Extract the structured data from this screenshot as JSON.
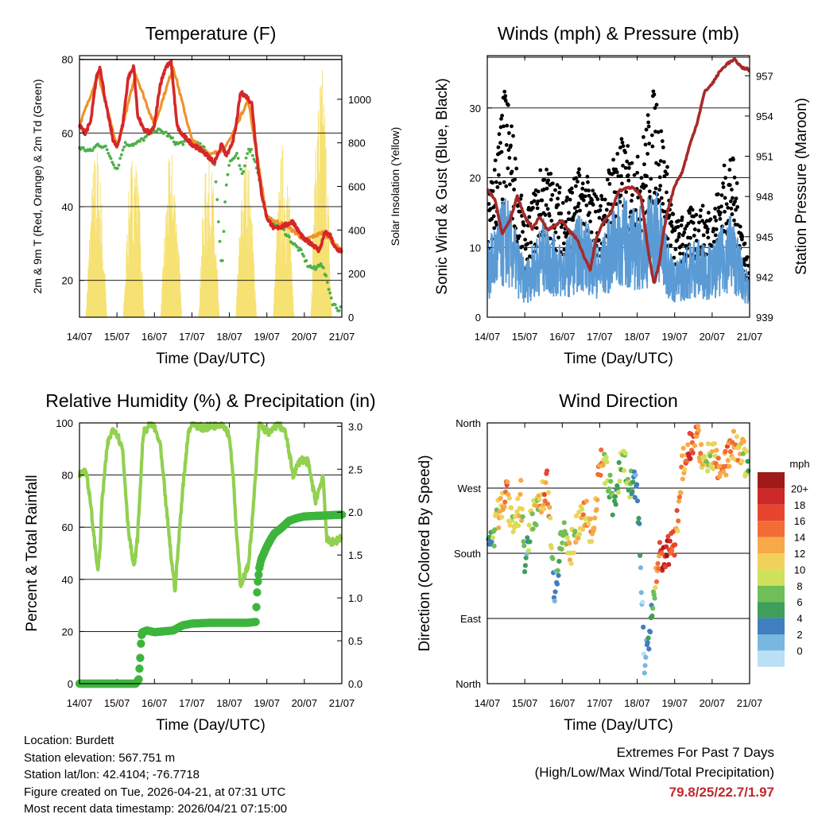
{
  "days": [
    "14/07",
    "15/07",
    "16/07",
    "17/07",
    "18/07",
    "19/07",
    "20/07",
    "21/07"
  ],
  "chart_data": [
    {
      "type": "line",
      "title": "Temperature (F)",
      "xlabel": "Time (Day/UTC)",
      "ylabel_left": "2m & 9m T (Red, Orange) & 2m Td (Green)",
      "ylabel_right": "Solar Insolation (Yellow)",
      "ylim": [
        10,
        81
      ],
      "y2lim": [
        0,
        1200
      ],
      "yticks": [
        "20",
        "40",
        "60",
        "80"
      ],
      "y2ticks": [
        "0",
        "200",
        "400",
        "600",
        "800",
        "1000"
      ],
      "series": [
        {
          "name": "2m T",
          "color": "#d62728",
          "x": [
            0,
            0.15,
            0.3,
            0.45,
            0.55,
            0.7,
            0.9,
            1.0,
            1.15,
            1.3,
            1.45,
            1.55,
            1.7,
            1.9,
            2.0,
            2.15,
            2.3,
            2.45,
            2.6,
            2.7,
            2.9,
            3.0,
            3.3,
            3.6,
            3.8,
            3.9,
            4.0,
            4.15,
            4.3,
            4.45,
            4.6,
            4.75,
            4.85,
            5.0,
            5.2,
            5.5,
            5.7,
            5.8,
            6.0,
            6.2,
            6.4,
            6.55,
            6.7,
            6.8,
            6.95,
            7.0
          ],
          "values": [
            62,
            60,
            63,
            75,
            78,
            68,
            58,
            56,
            62,
            75,
            78,
            65,
            61,
            60,
            62,
            73,
            78,
            79,
            62,
            60,
            58,
            57,
            55,
            52,
            57,
            54,
            55,
            60,
            71,
            70,
            68,
            52,
            44,
            37,
            34,
            35,
            36,
            34,
            31,
            30,
            28,
            33,
            32,
            29,
            28,
            28
          ]
        },
        {
          "name": "9m T",
          "color": "#f0922b",
          "x": [
            0,
            0.5,
            1.0,
            1.5,
            2.0,
            2.5,
            3.0,
            3.5,
            3.9,
            4.0,
            4.5,
            5.0,
            5.5,
            6.0,
            6.5,
            7.0
          ],
          "values": [
            62,
            76,
            56,
            76,
            62,
            78,
            58,
            54,
            56,
            58,
            69,
            37,
            35,
            31,
            33,
            28
          ]
        },
        {
          "name": "2m Td",
          "color": "#4daf4a",
          "x": [
            0,
            0.3,
            0.5,
            0.7,
            1.0,
            1.2,
            1.5,
            1.8,
            2.0,
            2.3,
            2.6,
            3.0,
            3.3,
            3.6,
            3.7,
            3.8,
            3.9,
            4.0,
            4.2,
            4.35,
            4.5,
            4.6,
            4.75,
            4.85,
            5.0,
            5.3,
            5.5,
            5.7,
            5.9,
            6.1,
            6.3,
            6.45,
            6.6,
            6.75,
            6.9,
            7.0
          ],
          "values": [
            56,
            55,
            57,
            56,
            50,
            57,
            57,
            59,
            61,
            60,
            57,
            58,
            56,
            52,
            38,
            22,
            45,
            52,
            54,
            48,
            56,
            55,
            50,
            45,
            37,
            35,
            33,
            30,
            28,
            24,
            23,
            25,
            20,
            14,
            12,
            13
          ]
        },
        {
          "name": "Solar Insolation",
          "color": "#f5dc5a",
          "axis": "right",
          "peaks_x": [
            0.45,
            1.45,
            2.45,
            3.45,
            4.45,
            5.45,
            6.45
          ],
          "peaks": [
            800,
            800,
            780,
            780,
            760,
            820,
            1180
          ]
        }
      ]
    },
    {
      "type": "scatter",
      "title": "Winds (mph) & Pressure (mb)",
      "xlabel": "Time (Day/UTC)",
      "ylabel_left": "Sonic Wind & Gust (Blue, Black)",
      "ylabel_right": "Station Pressure (Maroon)",
      "ylim": [
        0,
        37.5
      ],
      "y2lim": [
        939,
        958.5
      ],
      "yticks": [
        "0",
        "10",
        "20",
        "30"
      ],
      "y2ticks": [
        "939",
        "942",
        "945",
        "948",
        "951",
        "954",
        "957"
      ],
      "series": [
        {
          "name": "Gust",
          "color": "#000000",
          "x": [
            0,
            0.5,
            1.0,
            1.5,
            2.0,
            2.5,
            3.0,
            3.5,
            4.0,
            4.5,
            5.0,
            5.5,
            6.0,
            6.5,
            7.0
          ],
          "values": [
            14,
            30,
            12,
            20,
            16,
            19,
            15,
            23,
            20,
            30,
            12,
            14,
            14,
            22,
            6
          ]
        },
        {
          "name": "Sonic Wind",
          "color": "#5b9bd5",
          "x": [
            0,
            0.5,
            1.0,
            1.5,
            2.0,
            2.5,
            3.0,
            3.5,
            4.0,
            4.5,
            5.0,
            5.5,
            6.0,
            6.5,
            7.0
          ],
          "values": [
            8,
            14,
            6,
            11,
            8,
            12,
            8,
            14,
            12,
            15,
            6,
            9,
            8,
            12,
            4
          ]
        },
        {
          "name": "Station Pressure",
          "color": "#a52a2a",
          "axis": "right",
          "x": [
            0,
            0.2,
            0.4,
            0.6,
            0.8,
            1.0,
            1.2,
            1.4,
            1.6,
            1.8,
            2.0,
            2.2,
            2.4,
            2.6,
            2.75,
            2.9,
            3.1,
            3.3,
            3.5,
            3.7,
            3.9,
            4.1,
            4.3,
            4.45,
            4.6,
            4.7,
            4.8,
            5.0,
            5.2,
            5.4,
            5.6,
            5.8,
            6.0,
            6.2,
            6.4,
            6.6,
            6.8,
            6.95,
            7.0
          ],
          "values": [
            948.5,
            947.8,
            945.2,
            946.2,
            948.0,
            946.5,
            945.6,
            946.5,
            945.5,
            945.8,
            946.2,
            945.4,
            944.8,
            943.4,
            942.5,
            944.8,
            946.1,
            946.8,
            948.4,
            948.6,
            948.7,
            948.0,
            943.8,
            941.4,
            943.2,
            945.3,
            946.8,
            948.8,
            949.8,
            951.8,
            953.5,
            955.8,
            956.4,
            957.3,
            957.9,
            958.2,
            957.6,
            957.5,
            957.3
          ]
        }
      ]
    },
    {
      "type": "line",
      "title": "Relative Humidity (%) & Precipitation (in)",
      "xlabel": "Time (Day/UTC)",
      "ylabel_left": "Percent & Total Rainfall",
      "ylim": [
        0,
        100
      ],
      "y2lim": [
        0,
        3.04
      ],
      "yticks": [
        "0",
        "20",
        "40",
        "60",
        "80",
        "100"
      ],
      "y2ticks": [
        "0.0",
        "0.5",
        "1.0",
        "1.5",
        "2.0",
        "2.5",
        "3.0"
      ],
      "series": [
        {
          "name": "Relative Humidity",
          "color": "#92d050",
          "x": [
            0,
            0.1,
            0.2,
            0.3,
            0.45,
            0.5,
            0.55,
            0.6,
            0.75,
            0.9,
            1.0,
            1.15,
            1.3,
            1.45,
            1.55,
            1.7,
            1.9,
            2.0,
            2.15,
            2.3,
            2.45,
            2.55,
            2.75,
            2.9,
            3.0,
            3.3,
            3.6,
            3.8,
            3.9,
            4.0,
            4.1,
            4.2,
            4.3,
            4.5,
            4.6,
            4.8,
            4.9,
            5.1,
            5.3,
            5.5,
            5.7,
            5.9,
            6.1,
            6.3,
            6.5,
            6.6,
            6.8,
            6.95,
            7.0
          ],
          "values": [
            80,
            82,
            80,
            68,
            48,
            44,
            52,
            70,
            92,
            98,
            96,
            90,
            60,
            44,
            56,
            96,
            100,
            98,
            92,
            70,
            48,
            36,
            74,
            96,
            100,
            98,
            99,
            100,
            98,
            95,
            80,
            55,
            38,
            45,
            60,
            100,
            98,
            96,
            100,
            96,
            80,
            86,
            85,
            70,
            80,
            55,
            54,
            56,
            56
          ]
        },
        {
          "name": "Total Rainfall",
          "color": "#3db53d",
          "axis": "right",
          "x": [
            0,
            1.5,
            1.58,
            1.62,
            1.65,
            1.68,
            1.8,
            2.0,
            2.5,
            2.75,
            3.0,
            3.5,
            4.0,
            4.5,
            4.7,
            4.75,
            4.8,
            4.85,
            5.0,
            5.1,
            5.2,
            5.4,
            5.6,
            5.8,
            6.0,
            6.5,
            7.0
          ],
          "values": [
            0,
            0,
            0.05,
            0.3,
            0.55,
            0.6,
            0.62,
            0.6,
            0.62,
            0.68,
            0.7,
            0.71,
            0.71,
            0.71,
            0.72,
            1.15,
            1.35,
            1.45,
            1.6,
            1.68,
            1.75,
            1.82,
            1.9,
            1.93,
            1.95,
            1.96,
            1.97
          ]
        }
      ]
    },
    {
      "type": "scatter",
      "title": "Wind Direction",
      "xlabel": "Time (Day/UTC)",
      "ylabel_left": "Direction (Colored By Speed)",
      "ylim": [
        0,
        360
      ],
      "yticks": [
        "North",
        "East",
        "South",
        "West",
        "North"
      ],
      "legend_title": "mph",
      "legend_labels": [
        "20+",
        "18",
        "16",
        "14",
        "12",
        "10",
        "8",
        "6",
        "4",
        "2",
        "0"
      ],
      "legend_colors": [
        "#a11a1a",
        "#cc2828",
        "#e8452f",
        "#f26c35",
        "#f7a94a",
        "#f2d15a",
        "#cfe05a",
        "#6fbe57",
        "#3e9e5a",
        "#3f7fbe",
        "#77b7e0",
        "#b9e0f5"
      ],
      "series": [
        {
          "name": "Direction",
          "x": [
            0.1,
            0.3,
            0.5,
            0.7,
            0.9,
            1.0,
            1.2,
            1.4,
            1.6,
            1.8,
            2.0,
            2.2,
            2.4,
            2.6,
            2.8,
            3.0,
            3.2,
            3.4,
            3.6,
            3.8,
            4.0,
            4.2,
            4.4,
            4.6,
            4.8,
            5.0,
            5.2,
            5.4,
            5.6,
            5.8,
            6.0,
            6.2,
            6.4,
            6.6,
            6.8,
            7.0
          ],
          "values": [
            190,
            235,
            270,
            200,
            260,
            170,
            230,
            250,
            275,
            120,
            210,
            180,
            220,
            240,
            200,
            305,
            290,
            240,
            320,
            280,
            270,
            30,
            100,
            175,
            180,
            190,
            300,
            330,
            340,
            300,
            320,
            300,
            310,
            330,
            320,
            290
          ],
          "speeds": [
            6,
            12,
            16,
            10,
            14,
            4,
            10,
            12,
            16,
            4,
            8,
            12,
            10,
            14,
            12,
            16,
            8,
            6,
            10,
            8,
            4,
            2,
            6,
            18,
            20,
            16,
            14,
            18,
            16,
            10,
            12,
            14,
            16,
            14,
            12,
            6
          ]
        }
      ]
    }
  ],
  "footer": {
    "location": "Location: Burdett",
    "elevation": "Station elevation: 567.751 m",
    "latlon": "Station lat/lon: 42.4104; -76.7718",
    "created": "Figure created on Tue, 2026-04-21, at 07:31 UTC",
    "timestamp": "Most recent data timestamp: 2026/04/21 07:15:00",
    "extremes_title": "Extremes For Past 7 Days",
    "extremes_sub": "(High/Low/Max Wind/Total Precipitation)",
    "extremes_values": "79.8/25/22.7/1.97"
  }
}
